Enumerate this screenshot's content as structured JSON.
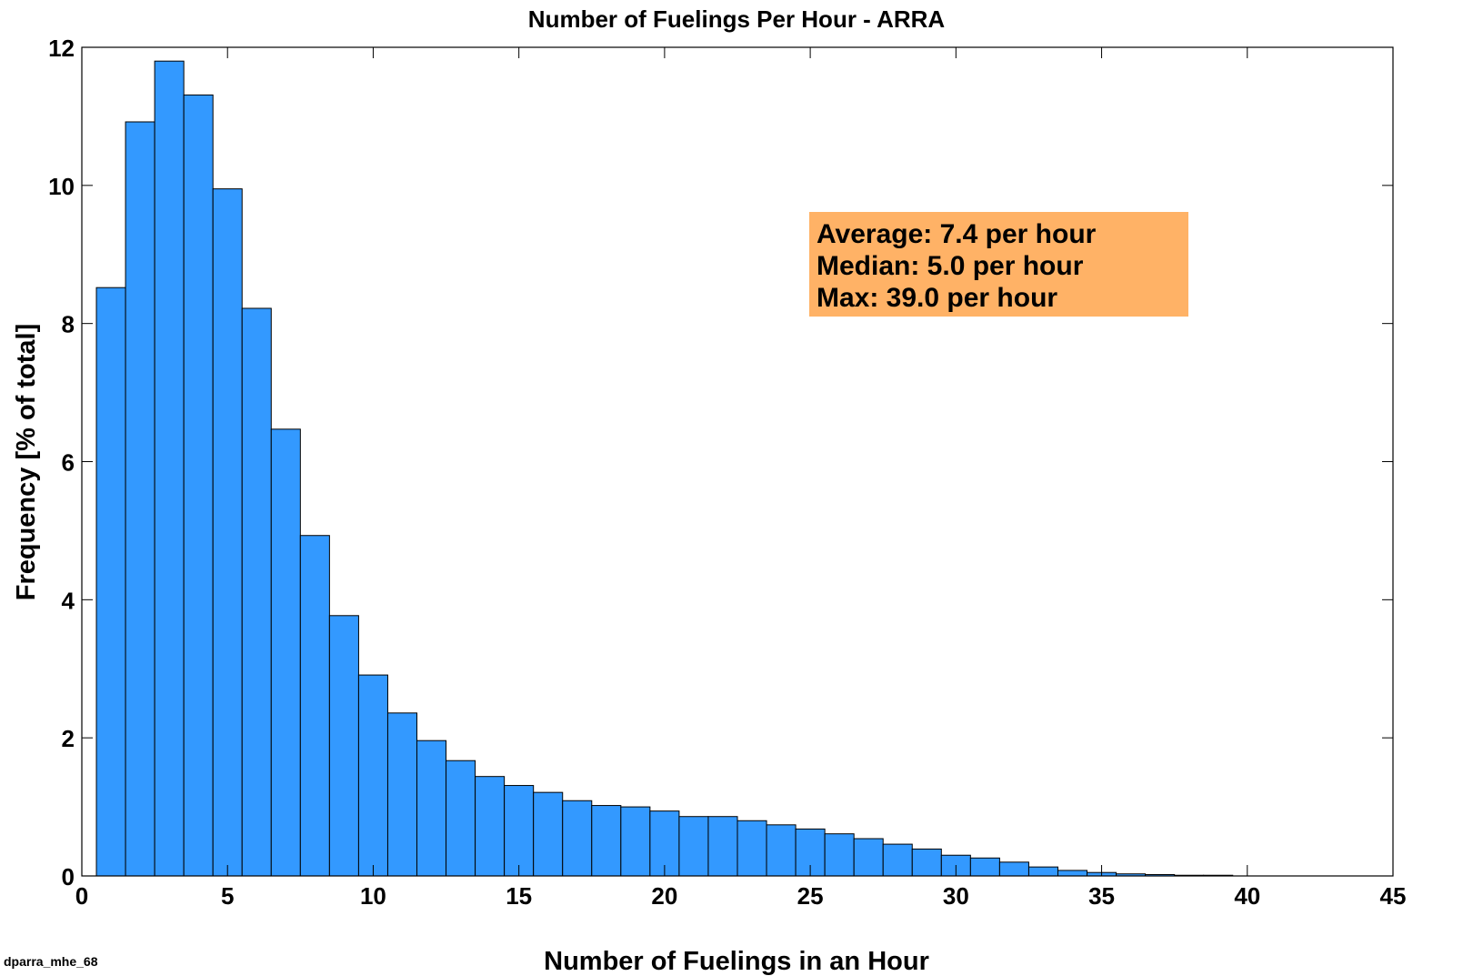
{
  "chart_data": {
    "type": "bar",
    "title": "Number of Fuelings Per Hour - ARRA",
    "xlabel": "Number of Fuelings in an Hour",
    "ylabel": "Frequency [% of total]",
    "xlim": [
      0,
      45
    ],
    "ylim": [
      0,
      12
    ],
    "xticks": [
      0,
      5,
      10,
      15,
      20,
      25,
      30,
      35,
      40,
      45
    ],
    "yticks": [
      0,
      2,
      4,
      6,
      8,
      10,
      12
    ],
    "grid": false,
    "bin_width": 1,
    "x": [
      1,
      2,
      3,
      4,
      5,
      6,
      7,
      8,
      9,
      10,
      11,
      12,
      13,
      14,
      15,
      16,
      17,
      18,
      19,
      20,
      21,
      22,
      23,
      24,
      25,
      26,
      27,
      28,
      29,
      30,
      31,
      32,
      33,
      34,
      35,
      36,
      37,
      38,
      39
    ],
    "values": [
      8.52,
      10.92,
      11.8,
      11.31,
      9.95,
      8.22,
      6.47,
      4.93,
      3.77,
      2.91,
      2.36,
      1.96,
      1.67,
      1.44,
      1.31,
      1.21,
      1.09,
      1.02,
      1.0,
      0.94,
      0.86,
      0.86,
      0.8,
      0.74,
      0.68,
      0.61,
      0.54,
      0.46,
      0.39,
      0.3,
      0.26,
      0.2,
      0.13,
      0.08,
      0.05,
      0.03,
      0.02,
      0.01,
      0.01
    ],
    "bar_color": "#3399FF",
    "bar_edge_color": "#000000",
    "annotation": {
      "lines": [
        "Average: 7.4 per hour",
        "Median: 5.0 per hour",
        "Max: 39.0 per hour"
      ],
      "background": "#FFB266",
      "placement": "top-right"
    }
  },
  "footer_label": "dparra_mhe_68"
}
